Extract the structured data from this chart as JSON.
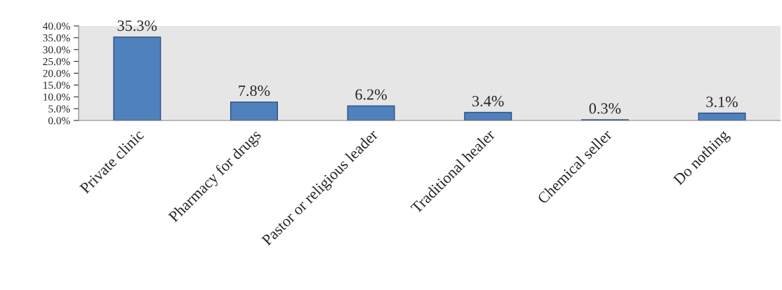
{
  "chart_data": {
    "type": "bar",
    "categories": [
      "Private clinic",
      "Pharmacy for drugs",
      "Pastor or religious leader",
      "Traditional healer",
      "Chemical seller",
      "Do nothing"
    ],
    "values": [
      35.3,
      7.8,
      6.2,
      3.4,
      0.3,
      3.1
    ],
    "value_labels": [
      "35.3%",
      "7.8%",
      "6.2%",
      "3.4%",
      "0.3%",
      "3.1%"
    ],
    "color": "#4f81bd",
    "ylim": [
      0,
      40
    ],
    "yticks": [
      {
        "value": 0,
        "label": "0.0%"
      },
      {
        "value": 5,
        "label": "5.0%"
      },
      {
        "value": 10,
        "label": "10.0%"
      },
      {
        "value": 15,
        "label": "15.0%"
      },
      {
        "value": 20,
        "label": "20.0%"
      },
      {
        "value": 25,
        "label": "25.0%"
      },
      {
        "value": 30,
        "label": "30.0%"
      },
      {
        "value": 35,
        "label": "35.0%"
      },
      {
        "value": 40,
        "label": "40.0%"
      }
    ],
    "grid": false,
    "legend": false
  }
}
